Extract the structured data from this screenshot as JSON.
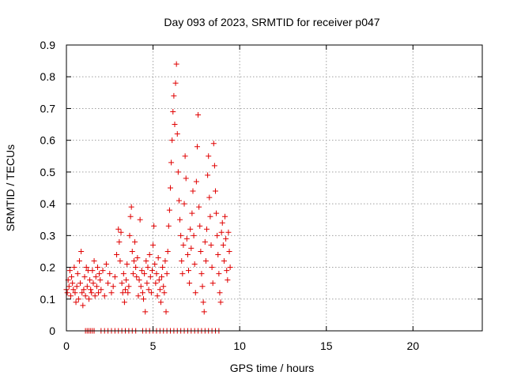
{
  "chart_data": {
    "type": "scatter",
    "title": "Day 093 of 2023, SRMTID for receiver p047",
    "xlabel": "GPS time / hours",
    "ylabel": "SRMTID / TECUs",
    "xlim": [
      0,
      24
    ],
    "ylim": [
      0,
      0.9
    ],
    "x_ticks": [
      0,
      5,
      10,
      15,
      20
    ],
    "y_ticks": [
      0,
      0.1,
      0.2,
      0.3,
      0.4,
      0.5,
      0.6,
      0.7,
      0.8,
      0.9
    ],
    "x_tick_labels": [
      "0",
      "5",
      "10",
      "15",
      "20"
    ],
    "y_tick_labels": [
      "0",
      "0.1",
      "0.2",
      "0.3",
      "0.4",
      "0.5",
      "0.6",
      "0.7",
      "0.8",
      "0.9"
    ],
    "grid": true,
    "marker": "+",
    "color": "#e00000",
    "series": [
      {
        "name": "SRMTID",
        "points": [
          [
            0.0,
            0.13
          ],
          [
            0.05,
            0.12
          ],
          [
            0.1,
            0.16
          ],
          [
            0.15,
            0.14
          ],
          [
            0.2,
            0.19
          ],
          [
            0.25,
            0.11
          ],
          [
            0.3,
            0.17
          ],
          [
            0.35,
            0.15
          ],
          [
            0.4,
            0.13
          ],
          [
            0.45,
            0.2
          ],
          [
            0.5,
            0.12
          ],
          [
            0.55,
            0.09
          ],
          [
            0.6,
            0.14
          ],
          [
            0.65,
            0.18
          ],
          [
            0.7,
            0.1
          ],
          [
            0.75,
            0.22
          ],
          [
            0.8,
            0.15
          ],
          [
            0.85,
            0.25
          ],
          [
            0.9,
            0.12
          ],
          [
            0.95,
            0.08
          ],
          [
            1.0,
            0.13
          ],
          [
            1.05,
            0.17
          ],
          [
            1.1,
            0.11
          ],
          [
            1.15,
            0.2
          ],
          [
            1.2,
            0.14
          ],
          [
            1.25,
            0.19
          ],
          [
            1.3,
            0.1
          ],
          [
            1.35,
            0.16
          ],
          [
            1.4,
            0.13
          ],
          [
            1.45,
            0.12
          ],
          [
            1.5,
            0.19
          ],
          [
            1.55,
            0.15
          ],
          [
            1.6,
            0.22
          ],
          [
            1.65,
            0.11
          ],
          [
            1.7,
            0.17
          ],
          [
            1.75,
            0.14
          ],
          [
            1.8,
            0.2
          ],
          [
            1.85,
            0.12
          ],
          [
            1.9,
            0.18
          ],
          [
            1.95,
            0.16
          ],
          [
            2.0,
            0.13
          ],
          [
            2.1,
            0.19
          ],
          [
            2.2,
            0.11
          ],
          [
            2.3,
            0.21
          ],
          [
            2.4,
            0.15
          ],
          [
            2.5,
            0.18
          ],
          [
            2.6,
            0.12
          ],
          [
            2.7,
            0.14
          ],
          [
            2.8,
            0.17
          ],
          [
            2.9,
            0.24
          ],
          [
            3.0,
            0.32
          ],
          [
            3.05,
            0.28
          ],
          [
            3.1,
            0.22
          ],
          [
            3.15,
            0.31
          ],
          [
            3.2,
            0.15
          ],
          [
            3.25,
            0.12
          ],
          [
            3.3,
            0.18
          ],
          [
            3.35,
            0.09
          ],
          [
            3.4,
            0.13
          ],
          [
            3.45,
            0.16
          ],
          [
            3.5,
            0.21
          ],
          [
            3.55,
            0.12
          ],
          [
            3.6,
            0.14
          ],
          [
            3.65,
            0.3
          ],
          [
            3.7,
            0.36
          ],
          [
            3.75,
            0.39
          ],
          [
            3.8,
            0.25
          ],
          [
            3.85,
            0.18
          ],
          [
            3.9,
            0.22
          ],
          [
            3.95,
            0.28
          ],
          [
            4.0,
            0.2
          ],
          [
            4.05,
            0.17
          ],
          [
            4.1,
            0.23
          ],
          [
            4.15,
            0.11
          ],
          [
            4.2,
            0.16
          ],
          [
            4.25,
            0.35
          ],
          [
            4.3,
            0.14
          ],
          [
            4.35,
            0.19
          ],
          [
            4.4,
            0.12
          ],
          [
            4.45,
            0.1
          ],
          [
            4.5,
            0.18
          ],
          [
            4.55,
            0.06
          ],
          [
            4.6,
            0.22
          ],
          [
            4.65,
            0.15
          ],
          [
            4.7,
            0.2
          ],
          [
            4.75,
            0.13
          ],
          [
            4.8,
            0.24
          ],
          [
            4.85,
            0.17
          ],
          [
            4.9,
            0.12
          ],
          [
            4.95,
            0.19
          ],
          [
            5.0,
            0.27
          ],
          [
            5.05,
            0.33
          ],
          [
            5.1,
            0.21
          ],
          [
            5.15,
            0.15
          ],
          [
            5.2,
            0.18
          ],
          [
            5.25,
            0.11
          ],
          [
            5.3,
            0.23
          ],
          [
            5.35,
            0.16
          ],
          [
            5.4,
            0.13
          ],
          [
            5.45,
            0.09
          ],
          [
            5.5,
            0.17
          ],
          [
            5.55,
            0.2
          ],
          [
            5.6,
            0.14
          ],
          [
            5.65,
            0.12
          ],
          [
            5.7,
            0.22
          ],
          [
            5.75,
            0.06
          ],
          [
            5.8,
            0.18
          ],
          [
            5.85,
            0.25
          ],
          [
            5.9,
            0.33
          ],
          [
            5.95,
            0.38
          ],
          [
            6.0,
            0.45
          ],
          [
            6.05,
            0.53
          ],
          [
            6.1,
            0.6
          ],
          [
            6.15,
            0.69
          ],
          [
            6.2,
            0.74
          ],
          [
            6.25,
            0.65
          ],
          [
            6.3,
            0.78
          ],
          [
            6.35,
            0.84
          ],
          [
            6.4,
            0.62
          ],
          [
            6.45,
            0.5
          ],
          [
            6.5,
            0.41
          ],
          [
            6.55,
            0.35
          ],
          [
            6.6,
            0.3
          ],
          [
            6.65,
            0.22
          ],
          [
            6.7,
            0.18
          ],
          [
            6.75,
            0.27
          ],
          [
            6.8,
            0.4
          ],
          [
            6.85,
            0.55
          ],
          [
            6.9,
            0.48
          ],
          [
            6.95,
            0.29
          ],
          [
            7.0,
            0.24
          ],
          [
            7.05,
            0.19
          ],
          [
            7.1,
            0.15
          ],
          [
            7.15,
            0.32
          ],
          [
            7.2,
            0.26
          ],
          [
            7.25,
            0.37
          ],
          [
            7.3,
            0.44
          ],
          [
            7.35,
            0.3
          ],
          [
            7.4,
            0.21
          ],
          [
            7.45,
            0.12
          ],
          [
            7.5,
            0.47
          ],
          [
            7.55,
            0.58
          ],
          [
            7.6,
            0.68
          ],
          [
            7.65,
            0.39
          ],
          [
            7.7,
            0.33
          ],
          [
            7.75,
            0.25
          ],
          [
            7.8,
            0.18
          ],
          [
            7.85,
            0.14
          ],
          [
            7.9,
            0.09
          ],
          [
            7.95,
            0.06
          ],
          [
            8.0,
            0.28
          ],
          [
            8.05,
            0.22
          ],
          [
            8.1,
            0.32
          ],
          [
            8.15,
            0.49
          ],
          [
            8.2,
            0.55
          ],
          [
            8.25,
            0.42
          ],
          [
            8.3,
            0.36
          ],
          [
            8.35,
            0.27
          ],
          [
            8.4,
            0.2
          ],
          [
            8.45,
            0.15
          ],
          [
            8.5,
            0.59
          ],
          [
            8.55,
            0.52
          ],
          [
            8.6,
            0.44
          ],
          [
            8.65,
            0.37
          ],
          [
            8.7,
            0.3
          ],
          [
            8.75,
            0.24
          ],
          [
            8.8,
            0.18
          ],
          [
            8.85,
            0.12
          ],
          [
            8.9,
            0.09
          ],
          [
            8.95,
            0.31
          ],
          [
            9.0,
            0.34
          ],
          [
            9.05,
            0.27
          ],
          [
            9.1,
            0.22
          ],
          [
            9.15,
            0.36
          ],
          [
            9.2,
            0.29
          ],
          [
            9.25,
            0.19
          ],
          [
            9.3,
            0.16
          ],
          [
            9.35,
            0.31
          ],
          [
            9.4,
            0.25
          ],
          [
            9.45,
            0.2
          ],
          [
            1.1,
            0.0
          ],
          [
            1.2,
            0.0
          ],
          [
            1.3,
            0.0
          ],
          [
            1.4,
            0.0
          ],
          [
            1.5,
            0.0
          ],
          [
            1.6,
            0.0
          ],
          [
            2.0,
            0.0
          ],
          [
            2.2,
            0.0
          ],
          [
            2.4,
            0.0
          ],
          [
            2.6,
            0.0
          ],
          [
            2.8,
            0.0
          ],
          [
            3.0,
            0.0
          ],
          [
            3.2,
            0.0
          ],
          [
            3.4,
            0.0
          ],
          [
            3.6,
            0.0
          ],
          [
            3.8,
            0.0
          ],
          [
            4.0,
            0.0
          ],
          [
            4.4,
            0.0
          ],
          [
            4.6,
            0.0
          ],
          [
            4.8,
            0.0
          ],
          [
            5.0,
            0.0
          ],
          [
            5.2,
            0.0
          ],
          [
            5.4,
            0.0
          ],
          [
            5.6,
            0.0
          ],
          [
            5.8,
            0.0
          ],
          [
            6.0,
            0.0
          ],
          [
            6.2,
            0.0
          ],
          [
            6.4,
            0.0
          ],
          [
            6.6,
            0.0
          ],
          [
            6.8,
            0.0
          ],
          [
            7.0,
            0.0
          ],
          [
            7.2,
            0.0
          ],
          [
            7.4,
            0.0
          ],
          [
            7.6,
            0.0
          ],
          [
            7.8,
            0.0
          ],
          [
            8.0,
            0.0
          ],
          [
            8.2,
            0.0
          ],
          [
            8.4,
            0.0
          ],
          [
            8.6,
            0.0
          ],
          [
            8.8,
            0.0
          ]
        ]
      }
    ]
  }
}
